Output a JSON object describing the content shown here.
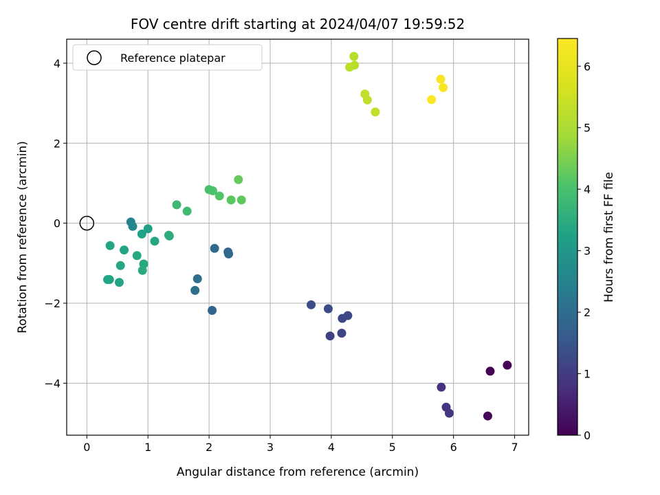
{
  "chart_data": {
    "type": "scatter",
    "title": "FOV centre drift starting at 2024/04/07 19:59:52",
    "xlabel": "Angular distance from reference (arcmin)",
    "ylabel": "Rotation from reference (arcmin)",
    "xlim": [
      -0.33,
      7.23
    ],
    "ylim": [
      -5.3,
      4.6
    ],
    "xticks": [
      0,
      1,
      2,
      3,
      4,
      5,
      6,
      7
    ],
    "yticks": [
      -4,
      -2,
      0,
      2,
      4
    ],
    "grid": true,
    "legend": {
      "placement": "top-left",
      "entries": [
        "Reference platepar"
      ]
    },
    "reference_point": {
      "x": 0,
      "y": 0
    },
    "colorbar": {
      "label": "Hours from first FF file",
      "range": [
        0,
        6.45
      ],
      "ticks": [
        0,
        1,
        2,
        3,
        4,
        5,
        6
      ],
      "colormap": "viridis"
    },
    "points": [
      {
        "x": 6.6,
        "y": -3.7,
        "c": 0.0
      },
      {
        "x": 6.88,
        "y": -3.55,
        "c": 0.05
      },
      {
        "x": 6.56,
        "y": -4.82,
        "c": 0.1
      },
      {
        "x": 5.8,
        "y": -4.1,
        "c": 0.8
      },
      {
        "x": 5.88,
        "y": -4.6,
        "c": 0.85
      },
      {
        "x": 5.93,
        "y": -4.75,
        "c": 0.9
      },
      {
        "x": 3.98,
        "y": -2.82,
        "c": 1.1
      },
      {
        "x": 4.17,
        "y": -2.75,
        "c": 1.15
      },
      {
        "x": 4.18,
        "y": -2.38,
        "c": 1.2
      },
      {
        "x": 4.27,
        "y": -2.31,
        "c": 1.25
      },
      {
        "x": 3.95,
        "y": -2.14,
        "c": 1.3
      },
      {
        "x": 3.67,
        "y": -2.04,
        "c": 1.35
      },
      {
        "x": 2.05,
        "y": -2.18,
        "c": 1.8
      },
      {
        "x": 2.31,
        "y": -0.72,
        "c": 1.85
      },
      {
        "x": 2.32,
        "y": -0.77,
        "c": 1.9
      },
      {
        "x": 2.09,
        "y": -0.63,
        "c": 1.95
      },
      {
        "x": 1.81,
        "y": -1.39,
        "c": 2.0
      },
      {
        "x": 1.77,
        "y": -1.68,
        "c": 2.05
      },
      {
        "x": 0.72,
        "y": 0.03,
        "c": 2.5
      },
      {
        "x": 0.75,
        "y": -0.08,
        "c": 2.6
      },
      {
        "x": 1.0,
        "y": -0.14,
        "c": 3.2
      },
      {
        "x": 0.9,
        "y": -0.27,
        "c": 3.25
      },
      {
        "x": 0.61,
        "y": -0.67,
        "c": 3.3
      },
      {
        "x": 0.38,
        "y": -0.56,
        "c": 3.3
      },
      {
        "x": 1.11,
        "y": -0.45,
        "c": 3.35
      },
      {
        "x": 1.35,
        "y": -0.32,
        "c": 3.5
      },
      {
        "x": 1.34,
        "y": -0.3,
        "c": 3.5
      },
      {
        "x": 0.82,
        "y": -0.81,
        "c": 3.4
      },
      {
        "x": 0.93,
        "y": -1.02,
        "c": 3.4
      },
      {
        "x": 0.91,
        "y": -1.18,
        "c": 3.45
      },
      {
        "x": 0.55,
        "y": -1.06,
        "c": 3.35
      },
      {
        "x": 0.34,
        "y": -1.41,
        "c": 3.3
      },
      {
        "x": 0.37,
        "y": -1.41,
        "c": 3.3
      },
      {
        "x": 0.53,
        "y": -1.48,
        "c": 3.3
      },
      {
        "x": 1.47,
        "y": 0.46,
        "c": 3.8
      },
      {
        "x": 1.64,
        "y": 0.3,
        "c": 3.85
      },
      {
        "x": 2.0,
        "y": 0.84,
        "c": 4.0
      },
      {
        "x": 2.06,
        "y": 0.81,
        "c": 4.05
      },
      {
        "x": 2.17,
        "y": 0.68,
        "c": 4.1
      },
      {
        "x": 2.36,
        "y": 0.58,
        "c": 4.2
      },
      {
        "x": 2.53,
        "y": 0.58,
        "c": 4.25
      },
      {
        "x": 2.48,
        "y": 1.09,
        "c": 4.3
      },
      {
        "x": 4.37,
        "y": 4.17,
        "c": 5.2
      },
      {
        "x": 4.38,
        "y": 3.95,
        "c": 5.2
      },
      {
        "x": 4.3,
        "y": 3.9,
        "c": 5.25
      },
      {
        "x": 4.55,
        "y": 3.23,
        "c": 5.3
      },
      {
        "x": 4.59,
        "y": 3.08,
        "c": 5.3
      },
      {
        "x": 4.72,
        "y": 2.78,
        "c": 5.3
      },
      {
        "x": 5.79,
        "y": 3.6,
        "c": 6.3
      },
      {
        "x": 5.83,
        "y": 3.39,
        "c": 6.35
      },
      {
        "x": 5.64,
        "y": 3.09,
        "c": 6.4
      }
    ]
  }
}
